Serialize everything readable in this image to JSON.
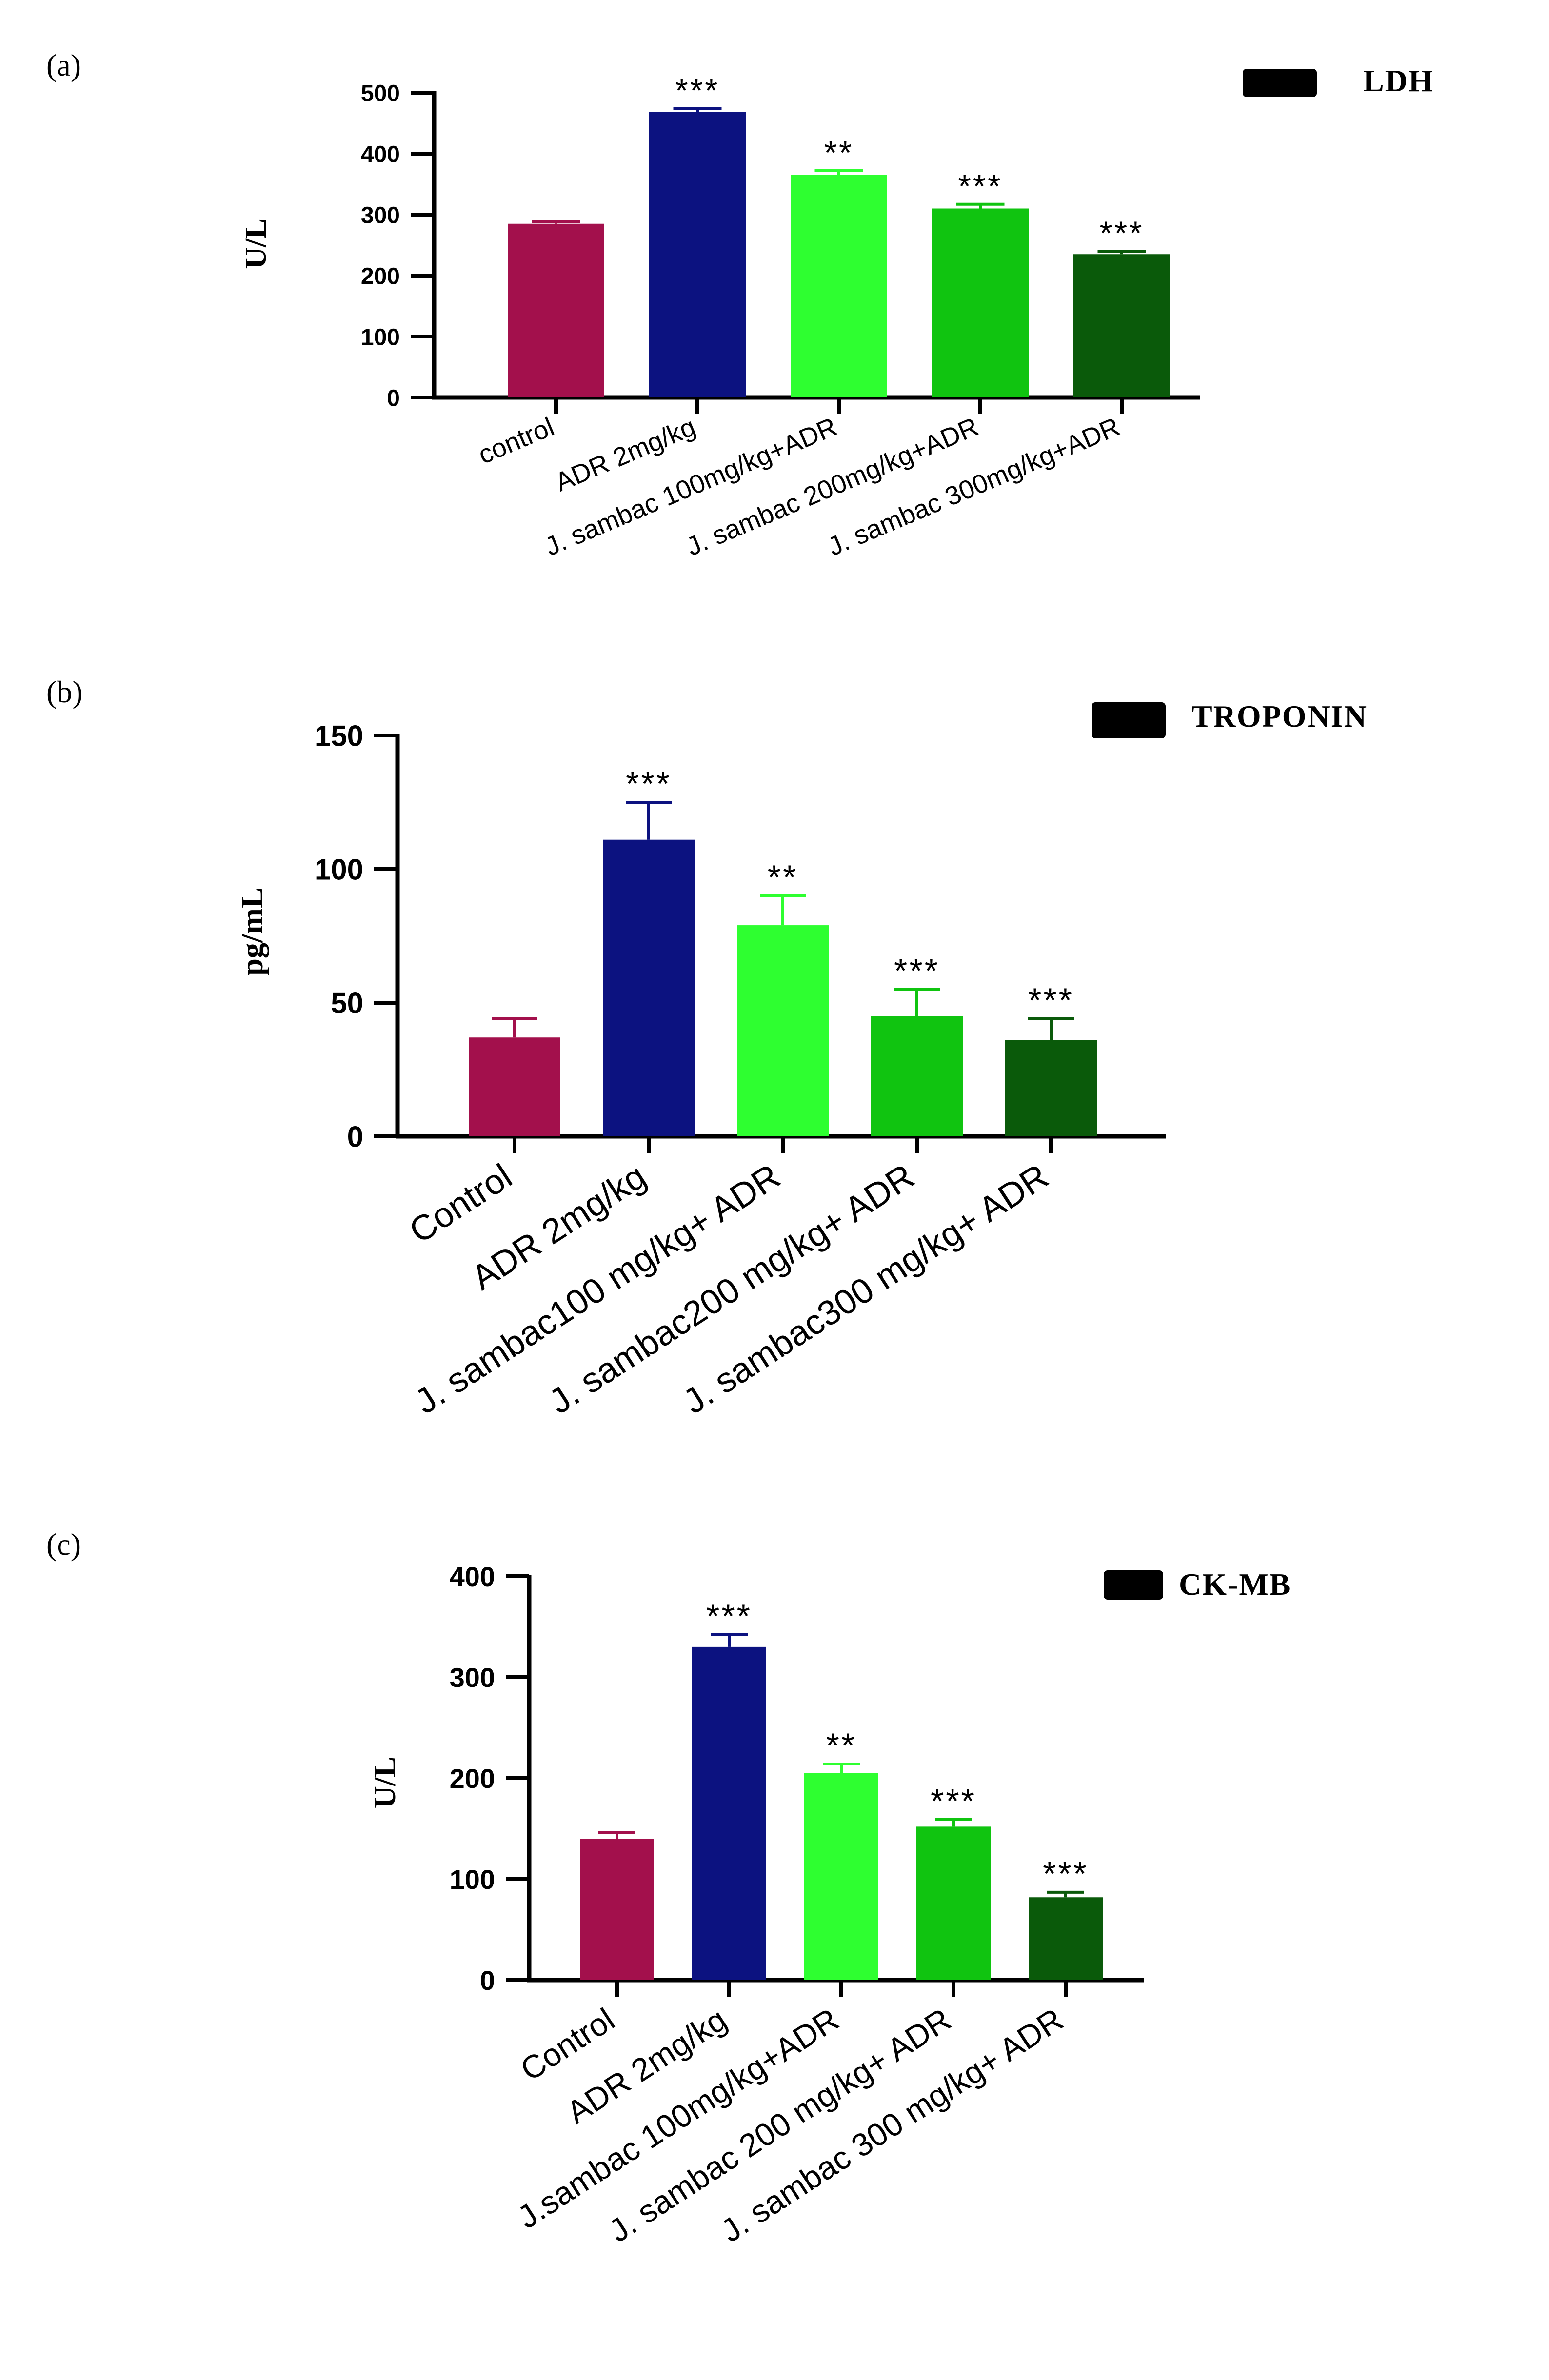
{
  "chart_data": [
    {
      "type": "bar",
      "panel_label": "(a)",
      "legend": "LDH",
      "ylabel": "U/L",
      "ylim": [
        0,
        500
      ],
      "yticks": [
        0,
        100,
        200,
        300,
        400,
        500
      ],
      "categories": [
        "control",
        "ADR 2mg/kg",
        "J. sambac 100mg/kg+ADR",
        "J. sambac 200mg/kg+ADR",
        "J. sambac 300mg/kg+ADR"
      ],
      "values": [
        285,
        468,
        365,
        310,
        235
      ],
      "errors": [
        3,
        6,
        7,
        7,
        5
      ],
      "significance": [
        "",
        "***",
        "**",
        "***",
        "***"
      ],
      "colors": [
        "#a3104c",
        "#0c1280",
        "#2eff30",
        "#10c410",
        "#0a5a0a"
      ]
    },
    {
      "type": "bar",
      "panel_label": "(b)",
      "legend": "TROPONIN",
      "ylabel": "pg/mL",
      "ylim": [
        0,
        150
      ],
      "yticks": [
        0,
        50,
        100,
        150
      ],
      "categories": [
        "Control",
        "ADR 2mg/kg",
        "J. sambac100 mg/kg+ ADR",
        "J. sambac200 mg/kg+ ADR",
        "J. sambac300 mg/kg+ ADR"
      ],
      "values": [
        37,
        111,
        79,
        45,
        36
      ],
      "errors": [
        7,
        14,
        11,
        10,
        8
      ],
      "significance": [
        "",
        "***",
        "**",
        "***",
        "***"
      ],
      "colors": [
        "#a3104c",
        "#0c1280",
        "#2eff30",
        "#10c410",
        "#0a5a0a"
      ]
    },
    {
      "type": "bar",
      "panel_label": "(c)",
      "legend": "CK-MB",
      "ylabel": "U/L",
      "ylim": [
        0,
        400
      ],
      "yticks": [
        0,
        100,
        200,
        300,
        400
      ],
      "categories": [
        "Control",
        "ADR 2mg/kg",
        "J.sambac 100mg/kg+ADR",
        "J. sambac 200 mg/kg+ ADR",
        "J. sambac 300 mg/kg+ ADR"
      ],
      "values": [
        140,
        330,
        205,
        152,
        82
      ],
      "errors": [
        6,
        12,
        9,
        7,
        5
      ],
      "significance": [
        "",
        "***",
        "**",
        "***",
        "***"
      ],
      "colors": [
        "#a3104c",
        "#0c1280",
        "#2eff30",
        "#10c410",
        "#0a5a0a"
      ]
    }
  ]
}
